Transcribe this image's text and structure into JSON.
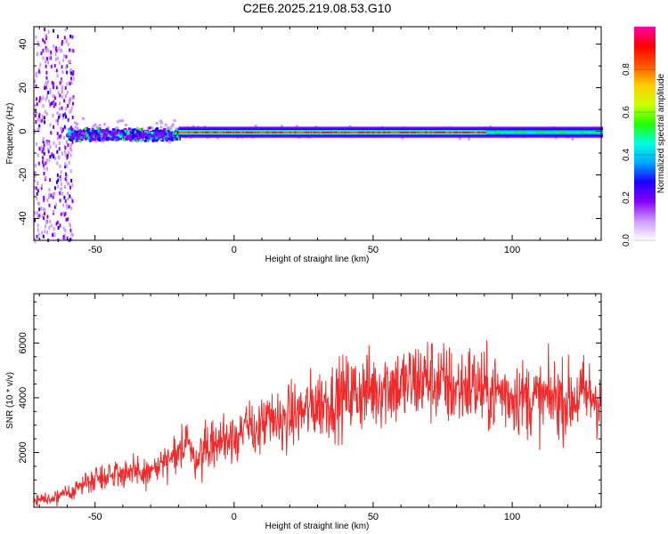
{
  "figure_title": "C2E6.2025.219.08.53.G10",
  "colors": {
    "snr_line": "#ee2a2a",
    "colormap": [
      "#ffffff",
      "#cc99ff",
      "#8a00ff",
      "#1a00ff",
      "#00aaff",
      "#00ffdd",
      "#22ff00",
      "#ccff00",
      "#ffcc00",
      "#ff5500",
      "#ff0000",
      "#ff00aa"
    ]
  },
  "chart_data": [
    {
      "type": "heatmap",
      "xlabel": "Height of straight line (km)",
      "ylabel": "Frequency (Hz)",
      "xlim": [
        -72,
        132
      ],
      "ylim": [
        -50,
        48
      ],
      "x_ticks": [
        -50,
        0,
        50,
        100
      ],
      "y_ticks": [
        -40,
        -20,
        0,
        20,
        40
      ],
      "colorbar": {
        "label": "Normalized spectral amplitude",
        "range": [
          0,
          1
        ],
        "ticks": [
          "0.0",
          "0.2",
          "0.4",
          "0.6",
          "0.8"
        ]
      },
      "features": {
        "central_frequency_hz": 0,
        "broadband_scatter_x_range": [
          -72,
          -58
        ],
        "noisy_band_x_range": [
          -60,
          -20
        ],
        "strong_line_x_range": [
          -20,
          90
        ],
        "moderate_line_x_range": [
          90,
          132
        ]
      }
    },
    {
      "type": "line",
      "xlabel": "Height of straight line (km)",
      "ylabel": "SNR (10 * v/v)",
      "xlim": [
        -72,
        132
      ],
      "ylim": [
        0,
        7800
      ],
      "x_ticks": [
        -50,
        0,
        50,
        100
      ],
      "y_ticks": [
        2000,
        4000,
        6000
      ],
      "series": [
        {
          "x": [
            -72,
            -65,
            -60,
            -55,
            -50,
            -45,
            -40,
            -35,
            -30,
            -25,
            -20,
            -17,
            -15,
            -10,
            -5,
            0,
            5,
            10,
            15,
            20,
            25,
            30,
            35,
            40,
            45,
            50,
            55,
            60,
            65,
            70,
            75,
            80,
            85,
            90,
            95,
            100,
            105,
            110,
            115,
            120,
            125,
            132
          ],
          "values": [
            300,
            300,
            500,
            800,
            1100,
            1200,
            1300,
            1200,
            1300,
            1600,
            1800,
            2800,
            1700,
            2200,
            2400,
            2700,
            2800,
            3000,
            3100,
            3300,
            3500,
            3800,
            3900,
            4100,
            4200,
            4300,
            4500,
            4400,
            4600,
            4700,
            4500,
            4300,
            4500,
            4200,
            4200,
            4100,
            4000,
            3900,
            4000,
            3900,
            4100,
            4000
          ]
        }
      ]
    }
  ]
}
